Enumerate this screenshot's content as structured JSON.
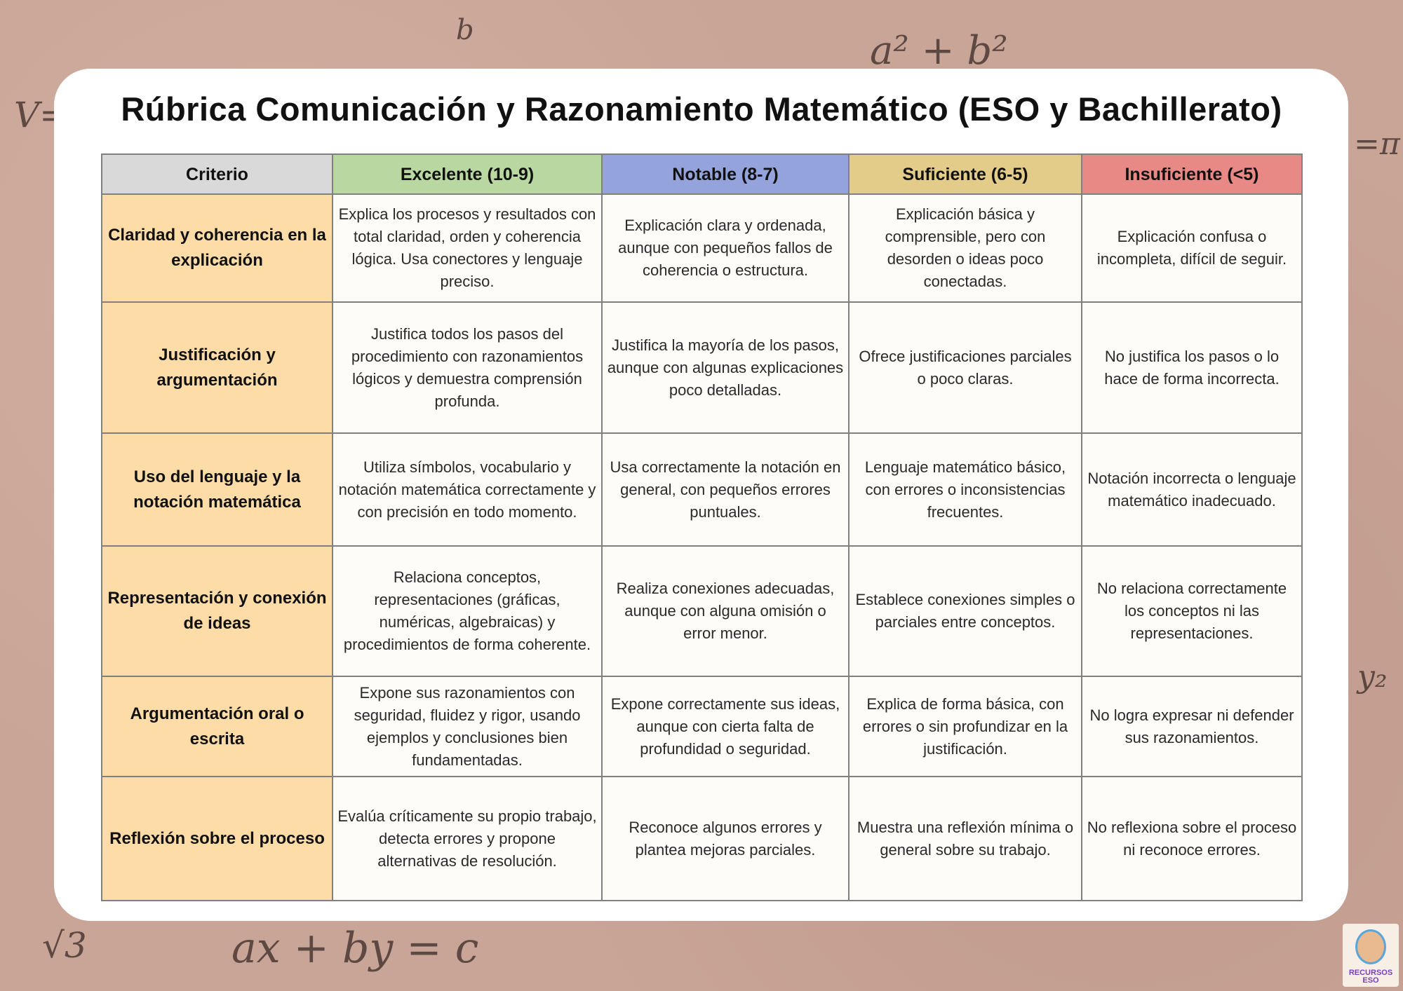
{
  "title": "Rúbrica Comunicación y Razonamiento Matemático (ESO y Bachillerato)",
  "headers": [
    {
      "label": "Criterio",
      "color": "#d9d9d9"
    },
    {
      "label": "Excelente (10-9)",
      "color": "#b9d7a0"
    },
    {
      "label": "Notable (8-7)",
      "color": "#95a3dc"
    },
    {
      "label": "Suficiente (6-5)",
      "color": "#e3cc8a"
    },
    {
      "label": "Insuficiente (<5)",
      "color": "#e88986"
    }
  ],
  "rows": [
    [
      "Claridad y coherencia en la explicación",
      "Explica los procesos y resultados con total claridad, orden y coherencia lógica. Usa conectores y lenguaje preciso.",
      "Explicación clara y ordenada, aunque con pequeños fallos de coherencia o estructura.",
      "Explicación básica y comprensible, pero con desorden o ideas poco conectadas.",
      "Explicación confusa o incompleta, difícil de seguir."
    ],
    [
      "Justificación y argumentación",
      "Justifica todos los pasos del procedimiento con razonamientos lógicos y demuestra comprensión profunda.",
      "Justifica la mayoría de los pasos, aunque con algunas explicaciones poco detalladas.",
      "Ofrece justificaciones parciales o poco claras.",
      "No justifica los pasos o lo hace de forma incorrecta."
    ],
    [
      "Uso del lenguaje y la notación matemática",
      "Utiliza símbolos, vocabulario y notación matemática correctamente y con precisión en todo momento.",
      "Usa correctamente la notación en general, con pequeños errores puntuales.",
      "Lenguaje matemático básico, con errores o inconsistencias frecuentes.",
      "Notación incorrecta o lenguaje matemático inadecuado."
    ],
    [
      "Representación y conexión de ideas",
      "Relaciona conceptos, representaciones (gráficas, numéricas, algebraicas) y procedimientos de forma coherente.",
      "Realiza conexiones adecuadas, aunque con alguna omisión o error menor.",
      "Establece conexiones simples o parciales entre conceptos.",
      "No relaciona correctamente los conceptos ni las representaciones."
    ],
    [
      "Argumentación oral o escrita",
      "Expone sus razonamientos con seguridad, fluidez y rigor, usando ejemplos y conclusiones bien fundamentadas.",
      "Expone correctamente sus ideas, aunque con cierta falta de profundidad o seguridad.",
      "Explica de forma básica, con errores o sin profundizar en la justificación.",
      "No logra expresar ni defender sus razonamientos."
    ],
    [
      "Reflexión sobre el proceso",
      "Evalúa críticamente su propio trabajo, detecta errores y propone alternativas de resolución.",
      "Reconoce algunos errores y plantea mejoras parciales.",
      "Muestra una reflexión mínima o general sobre su trabajo.",
      "No reflexiona sobre el proceso ni reconoce errores."
    ]
  ],
  "background_formulas": [
    "a² + b²",
    "ax + by = c",
    "√3",
    "V=",
    "=π",
    "y₂",
    "b"
  ],
  "logo": {
    "text": "RECURSOS ESO"
  }
}
